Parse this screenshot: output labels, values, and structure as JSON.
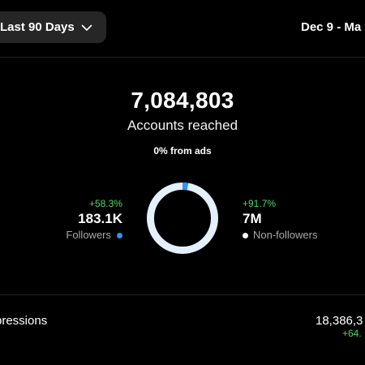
{
  "header": {
    "range_label": "Last 90 Days",
    "date_range": "Dec 9 - Ma"
  },
  "summary": {
    "accounts_reached": "7,084,803",
    "accounts_reached_label": "Accounts reached",
    "ads_share": "0% from ads"
  },
  "audience": {
    "followers": {
      "delta": "+58.3%",
      "value": "183.1K",
      "label": "Followers",
      "color": "#2e94f5"
    },
    "non_followers": {
      "delta": "+91.7%",
      "value": "7M",
      "label": "Non-followers",
      "color": "#ffffff"
    },
    "donut": {
      "followers_fraction": 0.026,
      "followers_color": "#2e94f5",
      "non_followers_color": "#e4f0fb"
    }
  },
  "impressions": {
    "label": "pressions",
    "value": "18,386,3",
    "delta": "+64."
  },
  "colors": {
    "background": "#000000",
    "positive": "#4cd964",
    "muted_text": "#a8a8a8",
    "button_bg": "#262626"
  }
}
